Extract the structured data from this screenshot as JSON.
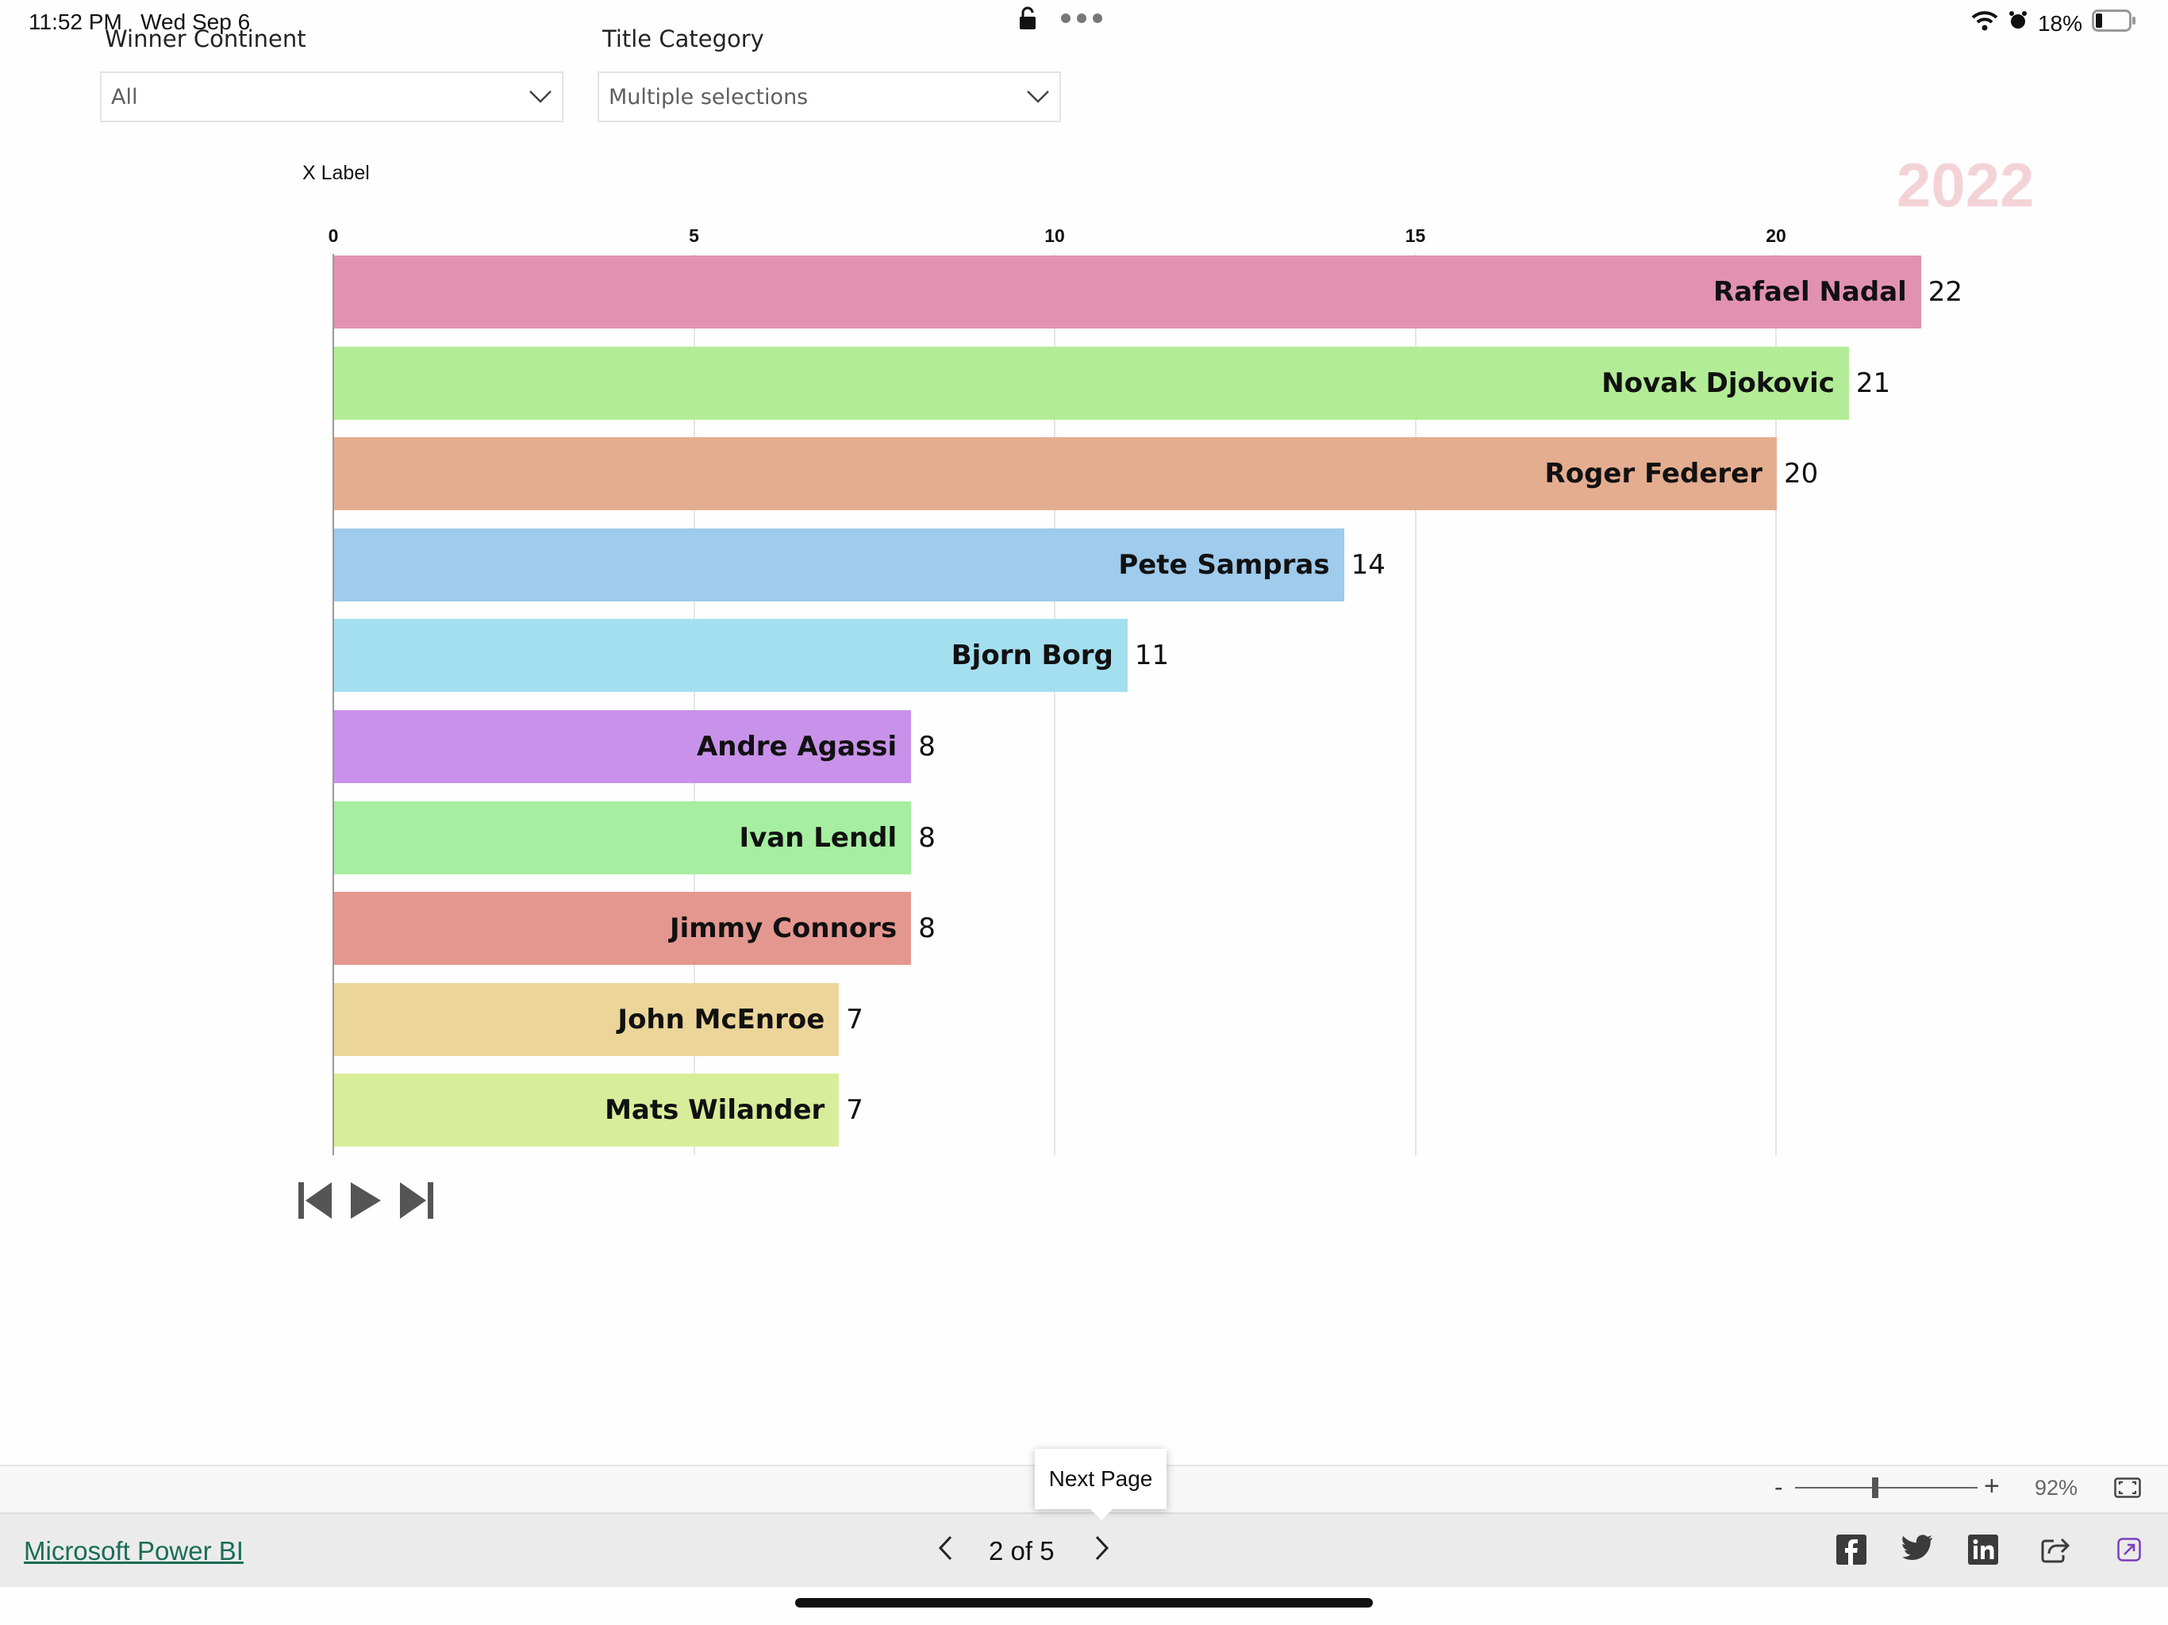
{
  "status_bar": {
    "time": "11:52 PM",
    "date": "Wed Sep 6",
    "battery": "18%"
  },
  "slicers": [
    {
      "label": "Winner Continent",
      "value": "All"
    },
    {
      "label": "Title Category",
      "value": "Multiple selections"
    }
  ],
  "chart_data": {
    "type": "bar",
    "orientation": "horizontal",
    "xlabel": "X Label",
    "year_label": "2022",
    "xlim": [
      0,
      22
    ],
    "ticks": [
      0,
      5,
      10,
      15,
      20
    ],
    "categories": [
      "Rafael Nadal",
      "Novak Djokovic",
      "Roger Federer",
      "Pete Sampras",
      "Bjorn Borg",
      "Andre Agassi",
      "Ivan Lendl",
      "Jimmy Connors",
      "John McEnroe",
      "Mats Wilander"
    ],
    "values": [
      22,
      21,
      20,
      14,
      11,
      8,
      8,
      8,
      7,
      7
    ],
    "colors": [
      "#e292b1",
      "#b3ec96",
      "#e4ad90",
      "#9fcbec",
      "#a4dff0",
      "#c892ea",
      "#a6eea0",
      "#e4978f",
      "#ecd599",
      "#d8ed9a"
    ],
    "grid": true
  },
  "zoom": {
    "minus": "-",
    "plus": "+",
    "level": "92%",
    "fraction": 0.44
  },
  "tooltip": {
    "text": "Next Page"
  },
  "footer": {
    "brand": "Microsoft Power BI",
    "page_indicator": "2 of 5"
  }
}
